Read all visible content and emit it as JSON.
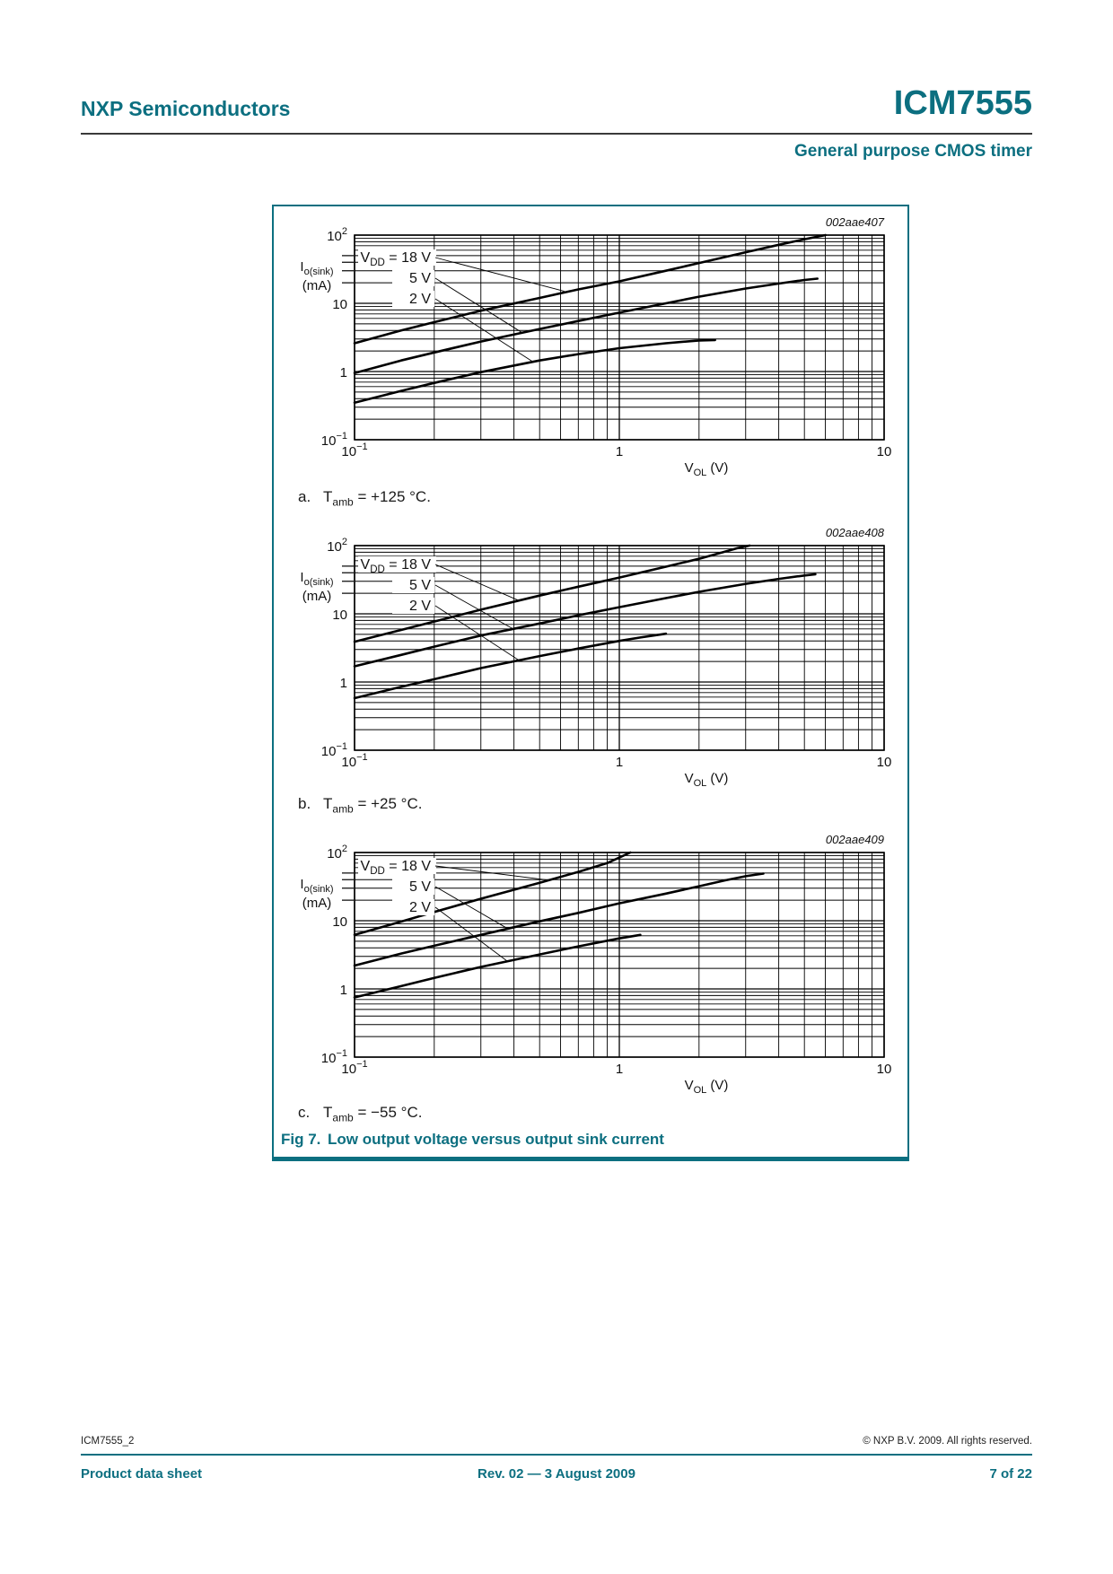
{
  "header": {
    "vendor": "NXP Semiconductors",
    "part": "ICM7555",
    "subtitle": "General purpose CMOS timer"
  },
  "figure": {
    "caption_label": "Fig 7.",
    "caption_text": "Low output voltage versus output sink current",
    "accent_color": "#0c6f80"
  },
  "chart_data": {
    "type": "line",
    "x_axis": {
      "label": "VOL (V)",
      "label_parts": {
        "base": "V",
        "sub": "OL",
        "rest": " (V)"
      },
      "scale": "log",
      "min": 0.1,
      "max": 10,
      "tick_values": [
        0.1,
        1,
        10
      ],
      "tick_labels": [
        "10^-1",
        "1",
        "10"
      ],
      "grid": "log-minor"
    },
    "y_axis": {
      "label": "Io(sink) (mA)",
      "label_parts": {
        "base": "I",
        "sub": "o(sink)",
        "unit": "(mA)"
      },
      "scale": "log",
      "min": 0.1,
      "max": 100,
      "tick_values": [
        0.1,
        1,
        10,
        100
      ],
      "tick_labels": [
        "10^-1",
        "1",
        "10",
        "10^2"
      ],
      "grid": "log-minor"
    },
    "legend_title_parts": {
      "base": "V",
      "sub": "DD",
      "rest": " = "
    },
    "charts": [
      {
        "id": "002aae407",
        "letter": "a.",
        "temp_caption": {
          "base": "T",
          "sub": "amb",
          "rest": " = +125 °C."
        },
        "legend_rows_y": [
          62,
          85,
          108
        ],
        "series": [
          {
            "label": "18 V",
            "vdd": 18,
            "leader_end": [
              0.62,
              15
            ],
            "points": [
              [
                0.1,
                2.6
              ],
              [
                0.15,
                4.0
              ],
              [
                0.2,
                5.3
              ],
              [
                0.3,
                7.8
              ],
              [
                0.5,
                12
              ],
              [
                0.7,
                16
              ],
              [
                1,
                21
              ],
              [
                1.5,
                30
              ],
              [
                2,
                39
              ],
              [
                3,
                56
              ],
              [
                4,
                72
              ],
              [
                5,
                87
              ],
              [
                6,
                100
              ]
            ]
          },
          {
            "label": "5 V",
            "vdd": 5,
            "leader_end": [
              0.43,
              3.7
            ],
            "points": [
              [
                0.1,
                0.95
              ],
              [
                0.15,
                1.45
              ],
              [
                0.2,
                1.9
              ],
              [
                0.3,
                2.75
              ],
              [
                0.5,
                4.2
              ],
              [
                0.7,
                5.5
              ],
              [
                1,
                7.3
              ],
              [
                1.5,
                10
              ],
              [
                2,
                12.5
              ],
              [
                3,
                16.5
              ],
              [
                4,
                19.5
              ],
              [
                5,
                22
              ],
              [
                5.6,
                23
              ]
            ]
          },
          {
            "label": "2 V",
            "vdd": 2,
            "leader_end": [
              0.47,
              1.4
            ],
            "points": [
              [
                0.1,
                0.35
              ],
              [
                0.15,
                0.52
              ],
              [
                0.2,
                0.68
              ],
              [
                0.3,
                0.98
              ],
              [
                0.5,
                1.45
              ],
              [
                0.7,
                1.8
              ],
              [
                1,
                2.2
              ],
              [
                1.5,
                2.6
              ],
              [
                2,
                2.85
              ],
              [
                2.3,
                2.9
              ]
            ]
          }
        ]
      },
      {
        "id": "002aae408",
        "letter": "b.",
        "temp_caption": {
          "base": "T",
          "sub": "amb",
          "rest": " = +25 °C."
        },
        "legend_rows_y": [
          58,
          81,
          104
        ],
        "series": [
          {
            "label": "18 V",
            "vdd": 18,
            "leader_end": [
              0.42,
              15.5
            ],
            "points": [
              [
                0.1,
                3.9
              ],
              [
                0.15,
                5.8
              ],
              [
                0.2,
                7.7
              ],
              [
                0.3,
                11.5
              ],
              [
                0.5,
                18.5
              ],
              [
                0.7,
                25
              ],
              [
                1,
                34
              ],
              [
                1.5,
                49
              ],
              [
                2,
                64
              ],
              [
                2.4,
                78
              ],
              [
                2.8,
                92
              ],
              [
                3.1,
                100
              ]
            ]
          },
          {
            "label": "5 V",
            "vdd": 5,
            "leader_end": [
              0.4,
              5.9
            ],
            "points": [
              [
                0.1,
                1.7
              ],
              [
                0.15,
                2.5
              ],
              [
                0.2,
                3.3
              ],
              [
                0.3,
                4.8
              ],
              [
                0.5,
                7.2
              ],
              [
                0.7,
                9.5
              ],
              [
                1,
                12.5
              ],
              [
                1.5,
                17
              ],
              [
                2,
                21
              ],
              [
                3,
                27.5
              ],
              [
                4,
                32.5
              ],
              [
                5,
                36.5
              ],
              [
                5.5,
                38
              ]
            ]
          },
          {
            "label": "2 V",
            "vdd": 2,
            "leader_end": [
              0.42,
              2.05
            ],
            "points": [
              [
                0.1,
                0.58
              ],
              [
                0.15,
                0.85
              ],
              [
                0.2,
                1.1
              ],
              [
                0.3,
                1.6
              ],
              [
                0.5,
                2.4
              ],
              [
                0.7,
                3.1
              ],
              [
                1,
                4.0
              ],
              [
                1.2,
                4.5
              ],
              [
                1.5,
                5.1
              ]
            ]
          }
        ]
      },
      {
        "id": "002aae409",
        "letter": "c.",
        "temp_caption": {
          "base": "T",
          "sub": "amb",
          "rest": " = −55 °C."
        },
        "legend_rows_y": [
          52,
          75,
          98
        ],
        "series": [
          {
            "label": "18 V",
            "vdd": 18,
            "leader_end": [
              0.55,
              39
            ],
            "points": [
              [
                0.1,
                6.2
              ],
              [
                0.15,
                9.7
              ],
              [
                0.2,
                13.4
              ],
              [
                0.3,
                21
              ],
              [
                0.5,
                36
              ],
              [
                0.7,
                52
              ],
              [
                0.9,
                70
              ],
              [
                1.1,
                100
              ]
            ]
          },
          {
            "label": "5 V",
            "vdd": 5,
            "leader_end": [
              0.38,
              7.6
            ],
            "points": [
              [
                0.1,
                2.2
              ],
              [
                0.15,
                3.3
              ],
              [
                0.2,
                4.3
              ],
              [
                0.3,
                6.2
              ],
              [
                0.5,
                9.8
              ],
              [
                0.7,
                13
              ],
              [
                1,
                18
              ],
              [
                1.5,
                25
              ],
              [
                2,
                32
              ],
              [
                2.5,
                39
              ],
              [
                3,
                45
              ],
              [
                3.5,
                49
              ]
            ]
          },
          {
            "label": "2 V",
            "vdd": 2,
            "leader_end": [
              0.38,
              2.5
            ],
            "points": [
              [
                0.1,
                0.75
              ],
              [
                0.15,
                1.1
              ],
              [
                0.2,
                1.45
              ],
              [
                0.3,
                2.1
              ],
              [
                0.5,
                3.2
              ],
              [
                0.7,
                4.2
              ],
              [
                1,
                5.5
              ],
              [
                1.2,
                6.2
              ]
            ]
          }
        ]
      }
    ]
  },
  "footer": {
    "doc_id": "ICM7555_2",
    "copyright": "© NXP B.V. 2009. All rights reserved.",
    "doc_type": "Product data sheet",
    "revision": "Rev. 02 — 3 August 2009",
    "page_indicator": "7 of 22"
  }
}
